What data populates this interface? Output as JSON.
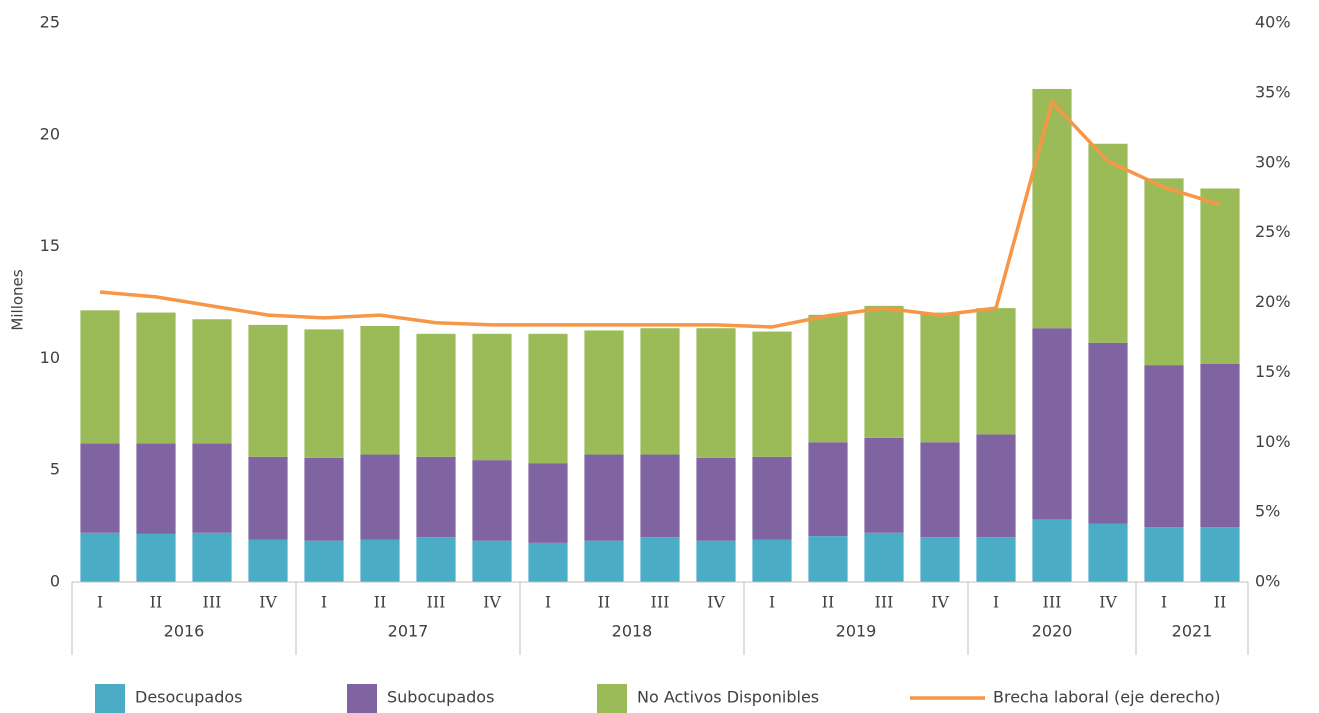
{
  "chart_data": {
    "type": "stacked-bar-line",
    "y_label": "Millones",
    "groups": [
      {
        "name": "2016",
        "categories": [
          "I",
          "II",
          "III",
          "IV"
        ]
      },
      {
        "name": "2017",
        "categories": [
          "I",
          "II",
          "III",
          "IV"
        ]
      },
      {
        "name": "2018",
        "categories": [
          "I",
          "II",
          "III",
          "IV"
        ]
      },
      {
        "name": "2019",
        "categories": [
          "I",
          "II",
          "III",
          "IV"
        ]
      },
      {
        "name": "2020",
        "categories": [
          "I",
          "III",
          "IV"
        ]
      },
      {
        "name": "2021",
        "categories": [
          "I",
          "II"
        ]
      }
    ],
    "series": [
      {
        "name": "Desocupados",
        "color": "#4bacc6",
        "values": [
          2.2,
          2.15,
          2.2,
          1.9,
          1.85,
          1.9,
          2.0,
          1.85,
          1.75,
          1.85,
          2.0,
          1.85,
          1.9,
          2.05,
          2.2,
          2.0,
          2.0,
          2.8,
          2.6,
          2.45,
          2.45
        ]
      },
      {
        "name": "Subocupados",
        "color": "#8064a2",
        "values": [
          4.0,
          4.05,
          4.0,
          3.7,
          3.7,
          3.8,
          3.6,
          3.6,
          3.55,
          3.85,
          3.7,
          3.7,
          3.7,
          4.2,
          4.25,
          4.25,
          4.6,
          8.55,
          8.1,
          7.25,
          7.3
        ]
      },
      {
        "name": "No Activos Disponibles",
        "color": "#9bbb59",
        "values": [
          5.95,
          5.85,
          5.55,
          5.9,
          5.75,
          5.75,
          5.5,
          5.65,
          5.8,
          5.55,
          5.65,
          5.8,
          5.6,
          5.7,
          5.9,
          5.8,
          5.65,
          10.7,
          8.9,
          8.35,
          7.85
        ]
      },
      {
        "name": "Brecha laboral (eje derecho)",
        "color": "#f79646",
        "axis": "y2",
        "values": [
          20.75,
          20.4,
          19.75,
          19.1,
          18.9,
          19.1,
          18.55,
          18.4,
          18.4,
          18.4,
          18.4,
          18.4,
          18.25,
          19.05,
          19.6,
          19.1,
          19.6,
          34.35,
          30.1,
          28.25,
          27.0
        ]
      }
    ],
    "ylim": [
      0,
      25
    ],
    "yticks": [
      0,
      5,
      10,
      15,
      20,
      25
    ],
    "y2lim": [
      0,
      40
    ],
    "y2ticks": [
      {
        "value": 0,
        "label": "0%"
      },
      {
        "value": 5,
        "label": "5%"
      },
      {
        "value": 10,
        "label": "10%"
      },
      {
        "value": 15,
        "label": "15%"
      },
      {
        "value": 20,
        "label": "20%"
      },
      {
        "value": 25,
        "label": "25%"
      },
      {
        "value": 30,
        "label": "30%"
      },
      {
        "value": 35,
        "label": "35%"
      },
      {
        "value": 40,
        "label": "40%"
      }
    ],
    "legend": "bottom"
  }
}
